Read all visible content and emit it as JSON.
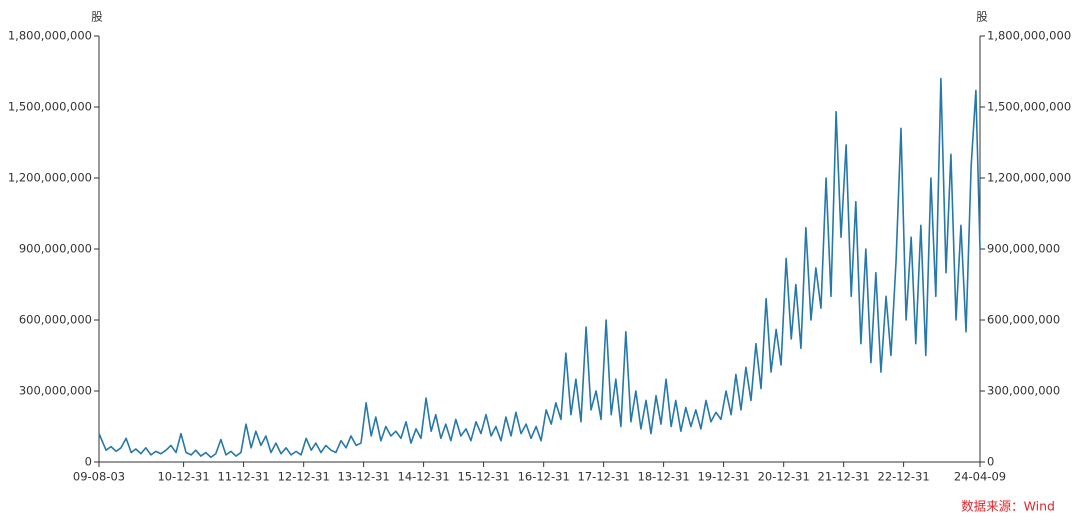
{
  "chart_data": {
    "type": "line",
    "y_label": "股",
    "y2_label": "股",
    "source": "数据来源：Wind",
    "color": "#2678a8",
    "xlim": [
      "09-08-03",
      "24-04-09"
    ],
    "xticks": [
      "09-08-03",
      "10-12-31",
      "11-12-31",
      "12-12-31",
      "13-12-31",
      "14-12-31",
      "15-12-31",
      "16-12-31",
      "17-12-31",
      "18-12-31",
      "19-12-31",
      "20-12-31",
      "21-12-31",
      "22-12-31",
      "24-04-09"
    ],
    "ylim": [
      0,
      1800000000
    ],
    "yticks": [
      0,
      {
        "value": 300000000,
        "label": "300,000,000"
      },
      {
        "value": 600000000,
        "label": "600,000,000"
      },
      {
        "value": 900000000,
        "label": "900,000,000"
      },
      {
        "value": 1200000000,
        "label": "1,200,000,000"
      },
      {
        "value": 1500000000,
        "label": "1,500,000,000"
      },
      {
        "value": 1800000000,
        "label": "1,800,000,000"
      }
    ],
    "y2lim": [
      0,
      1800000000
    ],
    "y2ticks": [
      0,
      {
        "value": 300000000,
        "label": "300,000,000"
      },
      {
        "value": 600000000,
        "label": "600,000,000"
      },
      {
        "value": 900000000,
        "label": "900,000,000"
      },
      {
        "value": 1200000000,
        "label": "1,200,000,000"
      },
      {
        "value": 1500000000,
        "label": "1,500,000,000"
      },
      {
        "value": 1800000000,
        "label": "1,800,000,000"
      }
    ],
    "x": [
      "09-08-03",
      "09-09-15",
      "09-10-15",
      "09-11-15",
      "09-12-15",
      "10-01-15",
      "10-02-15",
      "10-03-15",
      "10-04-15",
      "10-05-15",
      "10-06-15",
      "10-07-15",
      "10-08-15",
      "10-09-15",
      "10-10-15",
      "10-11-15",
      "10-12-15",
      "11-01-15",
      "11-02-15",
      "11-03-15",
      "11-04-15",
      "11-05-15",
      "11-06-15",
      "11-07-15",
      "11-08-15",
      "11-09-15",
      "11-10-15",
      "11-11-15",
      "11-12-15",
      "12-01-15",
      "12-02-15",
      "12-03-15",
      "12-04-15",
      "12-05-15",
      "12-06-15",
      "12-07-15",
      "12-08-15",
      "12-09-15",
      "12-10-15",
      "12-11-15",
      "12-12-15",
      "13-01-15",
      "13-02-15",
      "13-03-15",
      "13-04-15",
      "13-05-15",
      "13-06-15",
      "13-07-15",
      "13-08-15",
      "13-09-15",
      "13-10-15",
      "13-11-15",
      "13-12-15",
      "14-01-15",
      "14-02-15",
      "14-03-15",
      "14-04-15",
      "14-05-15",
      "14-06-15",
      "14-07-15",
      "14-08-15",
      "14-09-15",
      "14-10-15",
      "14-11-15",
      "14-12-15",
      "15-01-15",
      "15-02-15",
      "15-03-15",
      "15-04-15",
      "15-05-15",
      "15-06-15",
      "15-07-15",
      "15-08-15",
      "15-09-15",
      "15-10-15",
      "15-11-15",
      "15-12-15",
      "16-01-15",
      "16-02-15",
      "16-03-15",
      "16-04-15",
      "16-05-15",
      "16-06-15",
      "16-07-15",
      "16-08-15",
      "16-09-15",
      "16-10-15",
      "16-11-15",
      "16-12-15",
      "17-01-15",
      "17-02-15",
      "17-03-15",
      "17-04-15",
      "17-05-15",
      "17-06-15",
      "17-07-15",
      "17-08-15",
      "17-09-15",
      "17-10-15",
      "17-11-15",
      "17-12-15",
      "18-01-15",
      "18-02-15",
      "18-03-15",
      "18-04-15",
      "18-05-15",
      "18-06-15",
      "18-07-15",
      "18-08-15",
      "18-09-15",
      "18-10-15",
      "18-11-15",
      "18-12-15",
      "19-01-15",
      "19-02-15",
      "19-03-15",
      "19-04-15",
      "19-05-15",
      "19-06-15",
      "19-07-15",
      "19-08-15",
      "19-09-15",
      "19-10-15",
      "19-11-15",
      "19-12-15",
      "20-01-15",
      "20-02-15",
      "20-03-15",
      "20-04-15",
      "20-05-15",
      "20-06-15",
      "20-07-15",
      "20-08-15",
      "20-09-15",
      "20-10-15",
      "20-11-15",
      "20-12-15",
      "21-01-15",
      "21-02-15",
      "21-03-15",
      "21-04-15",
      "21-05-15",
      "21-06-15",
      "21-07-15",
      "21-08-15",
      "21-09-15",
      "21-10-15",
      "21-11-15",
      "21-12-15",
      "22-01-15",
      "22-02-15",
      "22-03-15",
      "22-04-15",
      "22-05-15",
      "22-06-15",
      "22-07-15",
      "22-08-15",
      "22-09-15",
      "22-10-15",
      "22-11-15",
      "22-12-15",
      "23-01-15",
      "23-02-15",
      "23-03-15",
      "23-04-15",
      "23-05-15",
      "23-06-15",
      "23-07-15",
      "23-08-15",
      "23-09-15",
      "23-10-15",
      "23-11-15",
      "23-12-15",
      "24-01-15",
      "24-02-15",
      "24-03-15",
      "24-04-09"
    ],
    "values": [
      120000000,
      50000000,
      65000000,
      45000000,
      60000000,
      100000000,
      40000000,
      55000000,
      35000000,
      60000000,
      30000000,
      45000000,
      35000000,
      50000000,
      70000000,
      40000000,
      120000000,
      40000000,
      30000000,
      50000000,
      25000000,
      40000000,
      20000000,
      35000000,
      95000000,
      30000000,
      45000000,
      25000000,
      40000000,
      160000000,
      60000000,
      130000000,
      70000000,
      110000000,
      40000000,
      80000000,
      35000000,
      60000000,
      30000000,
      45000000,
      30000000,
      100000000,
      50000000,
      80000000,
      40000000,
      70000000,
      50000000,
      40000000,
      90000000,
      60000000,
      110000000,
      70000000,
      80000000,
      250000000,
      110000000,
      190000000,
      90000000,
      150000000,
      110000000,
      130000000,
      100000000,
      170000000,
      80000000,
      140000000,
      100000000,
      270000000,
      130000000,
      200000000,
      100000000,
      160000000,
      90000000,
      180000000,
      110000000,
      140000000,
      90000000,
      170000000,
      120000000,
      200000000,
      110000000,
      150000000,
      90000000,
      190000000,
      110000000,
      210000000,
      120000000,
      160000000,
      100000000,
      150000000,
      90000000,
      220000000,
      160000000,
      250000000,
      180000000,
      460000000,
      200000000,
      350000000,
      170000000,
      570000000,
      220000000,
      300000000,
      180000000,
      600000000,
      200000000,
      350000000,
      150000000,
      550000000,
      170000000,
      300000000,
      140000000,
      260000000,
      120000000,
      280000000,
      160000000,
      350000000,
      150000000,
      260000000,
      130000000,
      230000000,
      150000000,
      220000000,
      140000000,
      260000000,
      170000000,
      210000000,
      180000000,
      300000000,
      200000000,
      370000000,
      220000000,
      400000000,
      260000000,
      500000000,
      310000000,
      690000000,
      380000000,
      560000000,
      410000000,
      860000000,
      520000000,
      750000000,
      480000000,
      990000000,
      600000000,
      820000000,
      650000000,
      1200000000,
      700000000,
      1480000000,
      950000000,
      1340000000,
      700000000,
      1100000000,
      500000000,
      900000000,
      420000000,
      800000000,
      380000000,
      700000000,
      450000000,
      850000000,
      1410000000,
      600000000,
      950000000,
      500000000,
      1000000000,
      450000000,
      1200000000,
      700000000,
      1620000000,
      800000000,
      1300000000,
      600000000,
      1000000000,
      550000000,
      1250000000,
      1570000000,
      900000000
    ]
  }
}
